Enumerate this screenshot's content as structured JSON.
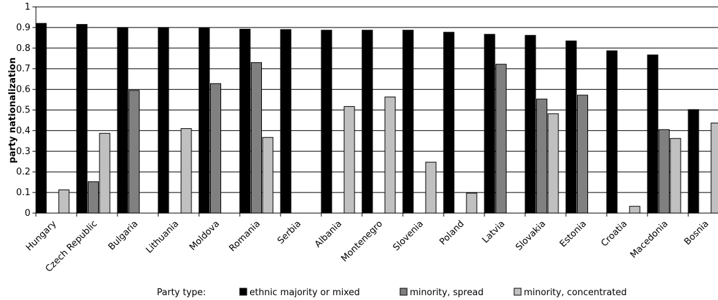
{
  "chart_data": {
    "type": "bar",
    "ylabel": "party nationalization",
    "xlabel": "",
    "ylim": [
      0,
      1
    ],
    "yticks": [
      "0",
      "0.1",
      "0.2",
      "0.3",
      "0.4",
      "0.5",
      "0.6",
      "0.7",
      "0.8",
      "0.9",
      "1"
    ],
    "grid": true,
    "legend": {
      "position": "bottom",
      "title": "Party type:"
    },
    "categories": [
      "Hungary",
      "Czech Republic",
      "Bulgaria",
      "Lithuania",
      "Moldova",
      "Romania",
      "Serbia",
      "Albania",
      "Montenegro",
      "Slovenia",
      "Poland",
      "Latvia",
      "Slovakia",
      "Estonia",
      "Croatia",
      "Macedonia",
      "Bosnia"
    ],
    "series": [
      {
        "name": "ethnic majority or mixed",
        "color": "#000000",
        "values": [
          0.92,
          0.915,
          0.9,
          0.9,
          0.897,
          0.892,
          0.89,
          0.887,
          0.887,
          0.887,
          0.877,
          0.867,
          0.862,
          0.835,
          0.787,
          0.767,
          0.502
        ]
      },
      {
        "name": "minority, spread",
        "color": "#808080",
        "values": [
          null,
          0.152,
          0.595,
          null,
          0.628,
          0.73,
          null,
          null,
          null,
          null,
          null,
          0.722,
          0.553,
          0.572,
          null,
          0.405,
          null
        ]
      },
      {
        "name": "minority, concentrated",
        "color": "#c0c0c0",
        "values": [
          0.113,
          0.387,
          null,
          0.41,
          null,
          0.367,
          null,
          0.517,
          0.563,
          0.247,
          0.097,
          null,
          0.482,
          null,
          0.033,
          0.362,
          0.437
        ]
      }
    ]
  }
}
